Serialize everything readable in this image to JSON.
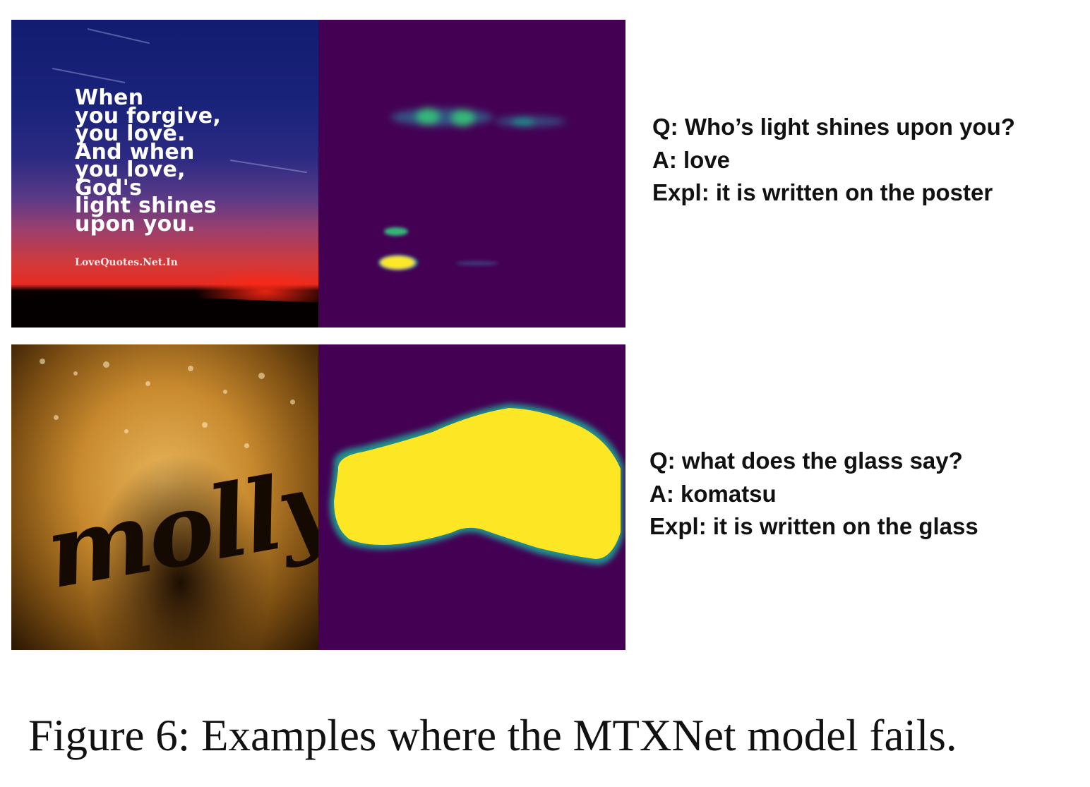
{
  "figure": {
    "caption": "Figure 6: Examples where the MTXNet model fails.",
    "examples": [
      {
        "image_text": [
          "When",
          "you forgive,",
          "you love.",
          "And when",
          "you love,",
          "God's",
          "light shines",
          "upon you."
        ],
        "image_source": "LoveQuotes.Net.In",
        "question": "Q: Who’s light shines upon you?",
        "answer": "A: love",
        "explanation": "Expl: it is written on the poster"
      },
      {
        "image_text": [
          "molly's"
        ],
        "question": "Q: what does the glass say?",
        "answer": "A: komatsu",
        "explanation": "Expl: it is written on the glass"
      }
    ]
  },
  "colors": {
    "heatmap_low": "#440154",
    "heatmap_mid": "#21918c",
    "heatmap_high": "#fde725"
  }
}
